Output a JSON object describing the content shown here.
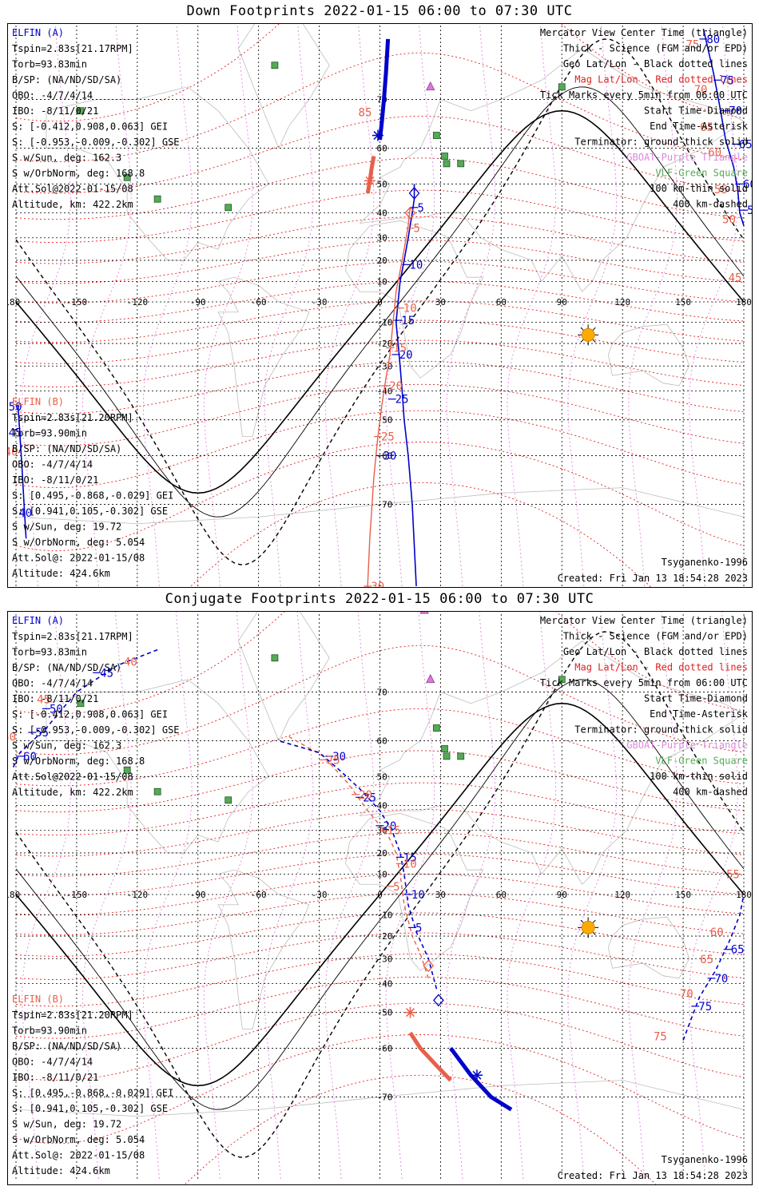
{
  "panels": [
    {
      "id": "down",
      "title": "Down Footprints 2022-01-15 06:00 to 07:30 UTC",
      "elfin_a": {
        "name": "ELFIN (A)",
        "lines": [
          "Tspin=2.83s[21.17RPM]",
          "Torb=93.83min",
          "B/SP: (NA/ND/SD/SA)",
          "OBO: -4/7/4/14",
          "IBO: -8/11/0/21",
          "S: [-0.412,0.908,0.063] GEI",
          "S: [-0.953,-0.009,-0.302] GSE",
          "S w/Sun, deg: 162.3",
          "S w/OrbNorm, deg: 168.8",
          "Att.Sol@2022-01-15/08",
          "Altitude, km: 422.2km"
        ]
      },
      "elfin_b": {
        "name": "ELFIN (B)",
        "lines": [
          "Tspin=2.83s[21.20RPM]",
          "Torb=93.90min",
          "B/SP: (NA/ND/SD/SA)",
          "OBO: -4/7/4/14",
          "IBO: -8/11/0/21",
          "S: [0.495,-0.868,-0.029] GEI",
          "S: [0.941,0.105,-0.302] GSE",
          "S w/Sun, deg: 19.72",
          "S w/OrbNorm, deg: 5.054",
          "Att.Sol@: 2022-01-15/08",
          "Altitude: 424.6km"
        ]
      },
      "model": "Tsyganenko-1996",
      "created": "Created: Fri Jan 13 18:54:28 2023"
    },
    {
      "id": "conjugate",
      "title": "Conjugate Footprints 2022-01-15 06:00 to 07:30 UTC",
      "elfin_a": {
        "name": "ELFIN (A)",
        "lines": [
          "Tspin=2.83s[21.17RPM]",
          "Torb=93.83min",
          "B/SP: (NA/ND/SD/SA)",
          "OBO: -4/7/4/14",
          "IBO: -8/11/0/21",
          "S: [-0.412,0.908,0.063] GEI",
          "S: [-0.953,-0.009,-0.302] GSE",
          "S w/Sun, deg: 162.3",
          "S w/OrbNorm, deg: 168.8",
          "Att.Sol@2022-01-15/08",
          "Altitude, km: 422.2km"
        ]
      },
      "elfin_b": {
        "name": "ELFIN (B)",
        "lines": [
          "Tspin=2.83s[21.20RPM]",
          "Torb=93.90min",
          "B/SP: (NA/ND/SD/SA)",
          "OBO: -4/7/4/14",
          "IBO: -8/11/0/21",
          "S: [0.495,-0.868,-0.029] GEI",
          "S: [0.941,0.105,-0.302] GSE",
          "S w/Sun, deg: 19.72",
          "S w/OrbNorm, deg: 5.054",
          "Att.Sol@: 2022-01-15/08",
          "Altitude: 424.6km"
        ]
      },
      "model": "Tsyganenko-1996",
      "created": "Created: Fri Jan 13 18:54:28 2023"
    }
  ],
  "legend": [
    {
      "text": "Mercator View Center Time (triangle)",
      "color": "#000000"
    },
    {
      "text": "Thick - Science (FGM and/or EPD)",
      "color": "#000000"
    },
    {
      "text": "Geo Lat/Lon - Black dotted lines",
      "color": "#000000"
    },
    {
      "text": "Mag Lat/Lon - Red dotted lines",
      "color": "#e02020"
    },
    {
      "text": "Tick Marks every 5min from 06:00 UTC",
      "color": "#000000"
    },
    {
      "text": "Start Time-Diamond",
      "color": "#000000"
    },
    {
      "text": "End Time-Asterisk",
      "color": "#000000"
    },
    {
      "text": "Terminator: ground-thick solid",
      "color": "#000000"
    },
    {
      "text": "GBOAT-Purple Triangle",
      "color": "#dd88dd"
    },
    {
      "text": "VLF-Green Square",
      "color": "#55aa55"
    },
    {
      "text": "100 km-thin solid",
      "color": "#000000"
    },
    {
      "text": "400 km-dashed",
      "color": "#000000"
    }
  ],
  "axes": {
    "lon_ticks": [
      "-180",
      "-150",
      "-120",
      "-90",
      "-60",
      "-30",
      "0",
      "30",
      "60",
      "90",
      "120",
      "150",
      "180"
    ],
    "lat_ticks": [
      "70",
      "60",
      "50",
      "40",
      "30",
      "20",
      "10",
      "-10",
      "-20",
      "-30",
      "-40",
      "-50",
      "-60",
      "-70"
    ],
    "lat_range": [
      -80,
      80
    ],
    "lon_range": [
      -180,
      180
    ]
  },
  "colors": {
    "elfin_a": "#0000cc",
    "elfin_b": "#e8604a",
    "grid_geo": "#000000",
    "grid_mag": "#e02020",
    "gboat": "#cc66cc",
    "vlf": "#55aa55",
    "sun": "#ffaa00"
  },
  "tracks": {
    "down": {
      "a_main": [
        [
          18,
          -80
        ],
        [
          16,
          -70
        ],
        [
          14,
          -60
        ],
        [
          12,
          -50
        ],
        [
          11,
          -40
        ],
        [
          10,
          -30
        ],
        [
          9,
          -20
        ],
        [
          8,
          -10
        ],
        [
          9,
          0
        ],
        [
          10,
          10
        ],
        [
          12,
          20
        ],
        [
          14,
          30
        ],
        [
          16,
          40
        ],
        [
          17,
          45
        ],
        [
          17,
          50
        ]
      ],
      "a_ticks": [
        {
          "lon": 17,
          "lat": 42,
          "label": "5"
        },
        {
          "lon": 13,
          "lat": 18,
          "label": "10"
        },
        {
          "lon": 9,
          "lat": -9,
          "label": "15"
        },
        {
          "lon": 8,
          "lat": -25,
          "label": "20"
        },
        {
          "lon": 6,
          "lat": -43,
          "label": "25"
        },
        {
          "lon": 0,
          "lat": -60,
          "label": "30"
        }
      ],
      "a_science": [
        [
          0,
          62
        ],
        [
          1,
          66
        ],
        [
          2,
          70
        ],
        [
          3,
          74
        ],
        [
          4,
          78
        ]
      ],
      "b_main": [
        [
          -7,
          -83
        ],
        [
          -5,
          -75
        ],
        [
          -3,
          -65
        ],
        [
          -1,
          -55
        ],
        [
          1,
          -45
        ],
        [
          3,
          -35
        ],
        [
          5,
          -25
        ],
        [
          6,
          -15
        ],
        [
          7,
          -5
        ],
        [
          8,
          5
        ],
        [
          10,
          15
        ],
        [
          12,
          25
        ],
        [
          14,
          35
        ],
        [
          15,
          42
        ]
      ],
      "b_ticks": [
        {
          "lon": 15,
          "lat": 34,
          "label": "5"
        },
        {
          "lon": 10,
          "lat": -3,
          "label": "10"
        },
        {
          "lon": 5,
          "lat": -22,
          "label": "15"
        },
        {
          "lon": 3,
          "lat": -38,
          "label": "20"
        },
        {
          "lon": -1,
          "lat": -55,
          "label": "25"
        },
        {
          "lon": -6,
          "lat": -80,
          "label": "30"
        }
      ],
      "b_science": [
        [
          -6,
          47
        ],
        [
          -5,
          51
        ],
        [
          -4,
          55
        ],
        [
          -3,
          58
        ]
      ],
      "a_right": [
        [
          160,
          79
        ],
        [
          165,
          74
        ],
        [
          168,
          69
        ],
        [
          171,
          62
        ],
        [
          175,
          55
        ],
        [
          177,
          48
        ],
        [
          178,
          40
        ],
        [
          180,
          35
        ]
      ],
      "a_right_ticks": [
        {
          "lon": 160,
          "lat": 78,
          "label": "80"
        },
        {
          "lon": 167,
          "lat": 73,
          "label": "75"
        },
        {
          "lon": 171,
          "lat": 68,
          "label": "70"
        },
        {
          "lon": 176,
          "lat": 61,
          "label": "65"
        },
        {
          "lon": 178,
          "lat": 50,
          "label": "60"
        },
        {
          "lon": 180,
          "lat": 41,
          "label": "55"
        }
      ],
      "b_right_labels": [
        {
          "lon": 158,
          "lat": 77,
          "label": "75"
        },
        {
          "lon": 162,
          "lat": 71,
          "label": "70"
        },
        {
          "lon": 165,
          "lat": 64,
          "label": "65"
        },
        {
          "lon": 169,
          "lat": 58,
          "label": "60"
        },
        {
          "lon": 172,
          "lat": 47,
          "label": "55"
        },
        {
          "lon": 176,
          "lat": 36,
          "label": "50"
        },
        {
          "lon": 179,
          "lat": 10,
          "label": "45"
        }
      ],
      "a_left": [
        [
          -179,
          -45
        ],
        [
          -178,
          -55
        ],
        [
          -177,
          -63
        ],
        [
          -176,
          -70
        ],
        [
          -175,
          -75
        ]
      ],
      "a_left_labels": [
        {
          "lon": -177,
          "lat": -47,
          "label": "50"
        },
        {
          "lon": -177,
          "lat": -55,
          "label": "45"
        },
        {
          "lon": -172,
          "lat": -72,
          "label": "40"
        }
      ],
      "b_left_labels": [
        {
          "lon": -179,
          "lat": -60,
          "label": "40"
        }
      ],
      "ends": {
        "a_start": {
          "lon": 17,
          "lat": 47
        },
        "a_end": {
          "lon": -1,
          "lat": 63
        },
        "b_start": {
          "lon": 15,
          "lat": 40
        },
        "b_end": {
          "lon": -5,
          "lat": 51
        }
      },
      "triangles": [
        {
          "lon": 22,
          "lat": 80
        },
        {
          "lon": 25,
          "lat": 72
        }
      ],
      "sun": {
        "lon": 103,
        "lat": -16
      },
      "b_label_top": {
        "lon": -4,
        "lat": 67,
        "label": "85"
      }
    },
    "conjugate": {
      "a_main": [
        [
          28,
          -42
        ],
        [
          24,
          -30
        ],
        [
          18,
          -18
        ],
        [
          14,
          -5
        ],
        [
          12,
          10
        ],
        [
          10,
          20
        ],
        [
          6,
          30
        ],
        [
          0,
          38
        ],
        [
          -10,
          46
        ],
        [
          -20,
          52
        ],
        [
          -30,
          57
        ],
        [
          -50,
          60
        ]
      ],
      "a_ticks": [
        {
          "lon": 16,
          "lat": -16,
          "label": "5"
        },
        {
          "lon": 14,
          "lat": 0,
          "label": "10"
        },
        {
          "lon": 10,
          "lat": 18,
          "label": "15"
        },
        {
          "lon": 0,
          "lat": 32,
          "label": "20"
        },
        {
          "lon": -10,
          "lat": 43,
          "label": "25"
        },
        {
          "lon": -25,
          "lat": 56,
          "label": "30"
        }
      ],
      "b_main": [
        [
          24,
          -38
        ],
        [
          20,
          -28
        ],
        [
          16,
          -20
        ],
        [
          12,
          -5
        ],
        [
          10,
          10
        ],
        [
          8,
          20
        ],
        [
          4,
          28
        ],
        [
          -6,
          38
        ],
        [
          -16,
          48
        ],
        [
          -28,
          56
        ],
        [
          -45,
          61
        ]
      ],
      "b_ticks": [
        {
          "lon": 10,
          "lat": 15,
          "label": "10"
        },
        {
          "lon": 2,
          "lat": 30,
          "label": "15"
        },
        {
          "lon": -12,
          "lat": 44,
          "label": "20"
        },
        {
          "lon": -28,
          "lat": 55,
          "label": "25"
        },
        {
          "lon": 5,
          "lat": 4,
          "label": "5"
        }
      ],
      "a_left": [
        [
          -110,
          76
        ],
        [
          -130,
          74
        ],
        [
          -150,
          70
        ],
        [
          -165,
          63
        ],
        [
          -178,
          57
        ],
        [
          -182,
          52
        ]
      ],
      "a_left_ticks": [
        {
          "lon": -140,
          "lat": 73,
          "label": "45"
        },
        {
          "lon": -165,
          "lat": 67,
          "label": "50"
        },
        {
          "lon": -172,
          "lat": 62,
          "label": "55"
        },
        {
          "lon": -178,
          "lat": 56,
          "label": "60"
        }
      ],
      "b_left_labels": [
        {
          "lon": -120,
          "lat": 74,
          "label": "40"
        },
        {
          "lon": -163,
          "lat": 68,
          "label": "45"
        },
        {
          "lon": -180,
          "lat": 60,
          "label": "50"
        }
      ],
      "a_right": [
        [
          150,
          -58
        ],
        [
          158,
          -45
        ],
        [
          166,
          -35
        ],
        [
          173,
          -22
        ],
        [
          178,
          -10
        ],
        [
          180,
          0
        ]
      ],
      "a_right_ticks": [
        {
          "lon": 156,
          "lat": -48,
          "label": "75"
        },
        {
          "lon": 164,
          "lat": -38,
          "label": "70"
        },
        {
          "lon": 172,
          "lat": -26,
          "label": "65"
        }
      ],
      "b_right_labels": [
        {
          "lon": 142,
          "lat": -58,
          "label": "75"
        },
        {
          "lon": 155,
          "lat": -45,
          "label": "70"
        },
        {
          "lon": 165,
          "lat": -32,
          "label": "65"
        },
        {
          "lon": 170,
          "lat": -20,
          "label": "60"
        },
        {
          "lon": 178,
          "lat": 8,
          "label": "55"
        }
      ],
      "a_science": [
        [
          35,
          -60
        ],
        [
          45,
          -66
        ],
        [
          55,
          -70
        ],
        [
          65,
          -72
        ]
      ],
      "b_science": [
        [
          15,
          -56
        ],
        [
          20,
          -60
        ],
        [
          28,
          -64
        ],
        [
          35,
          -67
        ]
      ],
      "ends": {
        "a_start": {
          "lon": 29,
          "lat": -46
        },
        "a_end": {
          "lon": 48,
          "lat": -66
        },
        "b_start": {
          "lon": 24,
          "lat": -33
        },
        "b_end": {
          "lon": 15,
          "lat": -50
        }
      },
      "triangles": [
        {
          "lon": 22,
          "lat": 80
        },
        {
          "lon": 25,
          "lat": 72
        }
      ],
      "sun": {
        "lon": 103,
        "lat": -16
      }
    }
  }
}
